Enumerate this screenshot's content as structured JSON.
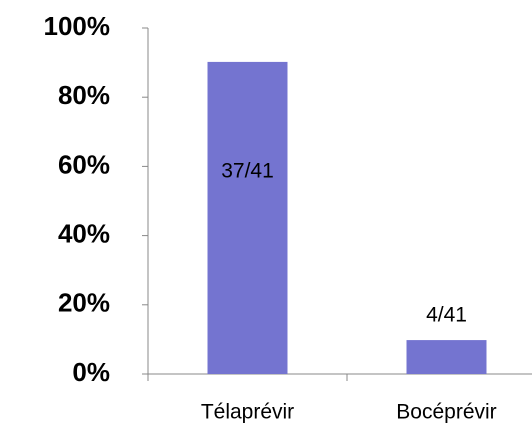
{
  "chart_data": {
    "type": "bar",
    "categories": [
      "Télaprévir",
      "Bocéprévir"
    ],
    "values": [
      90.2,
      9.8
    ],
    "value_labels": [
      "37/41",
      "4/41"
    ],
    "color": "#7474d0",
    "ylim": [
      0,
      100
    ],
    "yticks": [
      {
        "value": 0,
        "label": "0%"
      },
      {
        "value": 20,
        "label": "20%"
      },
      {
        "value": 40,
        "label": "40%"
      },
      {
        "value": 60,
        "label": "60%"
      },
      {
        "value": 80,
        "label": "80%"
      },
      {
        "value": 100,
        "label": "100%"
      }
    ]
  }
}
